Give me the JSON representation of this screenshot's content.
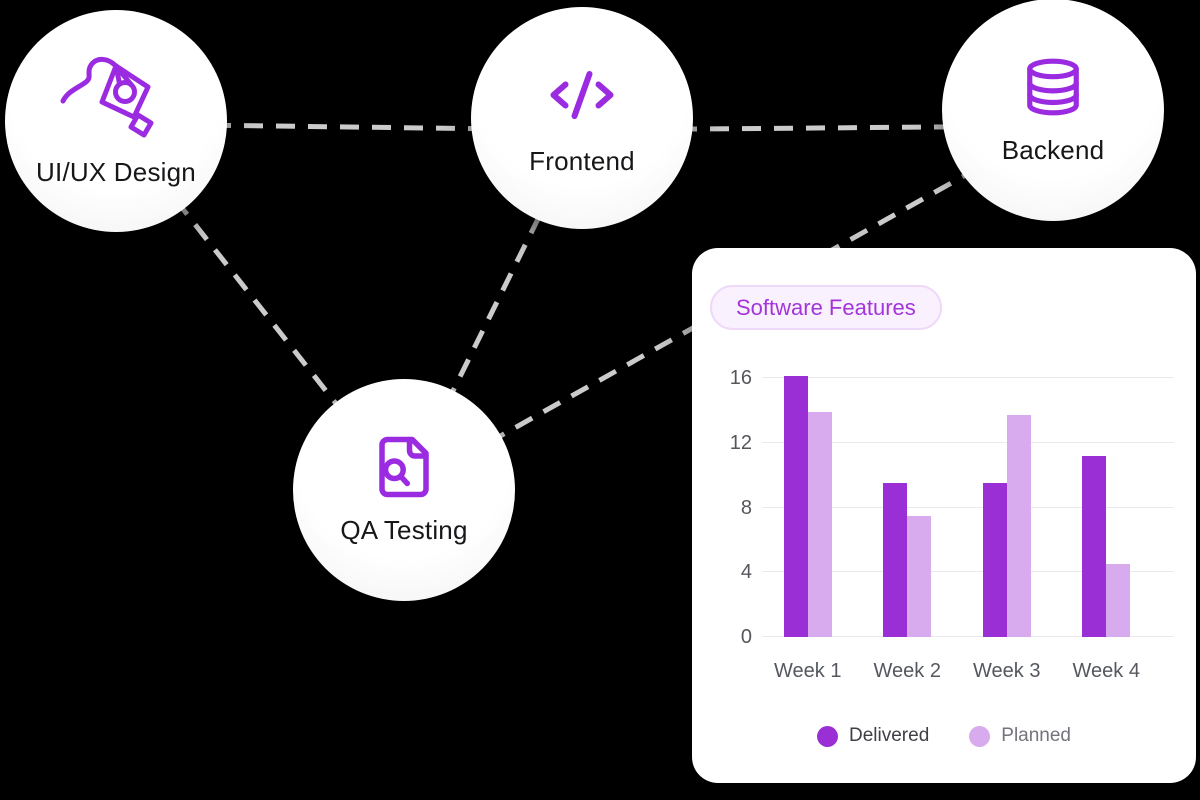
{
  "colors": {
    "background": "#000000",
    "node_fill": "#ffffff",
    "icon_purple": "#9b2be0",
    "edge_gray": "#cbcbcb",
    "delivered": "#9b2fd6",
    "planned": "#d7abee",
    "pill_bg": "#faf1fe",
    "pill_border": "#eed9f8",
    "pill_text": "#a335d9"
  },
  "diagram": {
    "nodes": [
      {
        "id": "uiux",
        "label": "UI/UX Design",
        "icon": "pen-nib-icon"
      },
      {
        "id": "frontend",
        "label": "Frontend",
        "icon": "code-icon"
      },
      {
        "id": "backend",
        "label": "Backend",
        "icon": "database-icon"
      },
      {
        "id": "qa",
        "label": "QA Testing",
        "icon": "file-search-icon"
      }
    ],
    "edges": [
      [
        "uiux",
        "frontend"
      ],
      [
        "frontend",
        "backend"
      ],
      [
        "uiux",
        "qa"
      ],
      [
        "frontend",
        "qa"
      ],
      [
        "qa",
        "backend"
      ]
    ]
  },
  "chart_data": {
    "type": "bar",
    "title": "Software Features",
    "categories": [
      "Week 1",
      "Week 2",
      "Week 3",
      "Week 4"
    ],
    "series": [
      {
        "name": "Delivered",
        "color": "#9b2fd6",
        "label_color": "#3f3f46",
        "values": [
          16.1,
          9.5,
          9.5,
          11.2
        ]
      },
      {
        "name": "Planned",
        "color": "#d7abee",
        "label_color": "#74747c",
        "values": [
          13.9,
          7.5,
          13.7,
          4.5
        ]
      }
    ],
    "yticks": [
      0,
      4,
      8,
      12,
      16
    ],
    "ylim": [
      0,
      16
    ],
    "xlabel": "",
    "ylabel": "",
    "grid": true,
    "legend_position": "bottom"
  }
}
